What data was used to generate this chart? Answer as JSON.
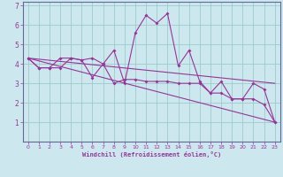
{
  "background_color": "#cce8ee",
  "grid_color": "#99cccc",
  "line_color": "#993399",
  "border_color": "#666699",
  "xlabel": "Windchill (Refroidissement éolien,°C)",
  "xlim": [
    -0.5,
    23.5
  ],
  "ylim": [
    0,
    7.2
  ],
  "xticks": [
    0,
    1,
    2,
    3,
    4,
    5,
    6,
    7,
    8,
    9,
    10,
    11,
    12,
    13,
    14,
    15,
    16,
    17,
    18,
    19,
    20,
    21,
    22,
    23
  ],
  "yticks": [
    1,
    2,
    3,
    4,
    5,
    6,
    7
  ],
  "series": [
    {
      "x": [
        0,
        1,
        2,
        3,
        4,
        5,
        6,
        7,
        8,
        9,
        10,
        11,
        12,
        13,
        14,
        15,
        16,
        17,
        18,
        19,
        20,
        21,
        22,
        23
      ],
      "y": [
        4.3,
        3.8,
        3.8,
        4.3,
        4.3,
        4.2,
        4.3,
        4.0,
        4.7,
        3.0,
        5.6,
        6.5,
        6.1,
        6.6,
        3.9,
        4.7,
        3.1,
        2.5,
        3.1,
        2.2,
        2.2,
        3.0,
        2.7,
        1.0
      ]
    },
    {
      "x": [
        0,
        1,
        2,
        3,
        4,
        5,
        6,
        7,
        8,
        9,
        10,
        11,
        12,
        13,
        14,
        15,
        16,
        17,
        18,
        19,
        20,
        21,
        22,
        23
      ],
      "y": [
        4.3,
        3.8,
        3.8,
        3.8,
        4.3,
        4.2,
        3.3,
        4.0,
        3.0,
        3.2,
        3.2,
        3.1,
        3.1,
        3.1,
        3.0,
        3.0,
        3.0,
        2.5,
        2.5,
        2.2,
        2.2,
        2.2,
        1.9,
        1.0
      ]
    },
    {
      "x": [
        0,
        23
      ],
      "y": [
        4.3,
        3.0
      ]
    },
    {
      "x": [
        0,
        23
      ],
      "y": [
        4.3,
        1.0
      ]
    }
  ]
}
